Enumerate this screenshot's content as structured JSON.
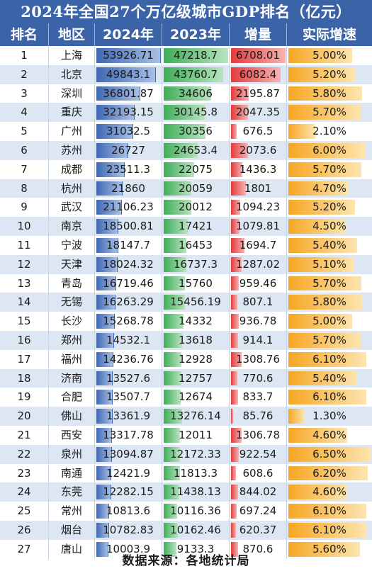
{
  "title": "2024年全国27个万亿级城市GDP排名（亿元）",
  "footer": "数据来源：各地统计局",
  "headers": {
    "rank": "排名",
    "region": "地区",
    "gdp2024": "2024年",
    "gdp2023": "2023年",
    "increase": "增量",
    "growth": "实际增速"
  },
  "colors": {
    "header_bg": "#3b63a8",
    "bar_2024": "#3f68b4",
    "bar_2023": "#3fae58",
    "bar_increase": "#e23c3c",
    "bar_growth": "#f6a623",
    "row_alt": "#dde6f3"
  },
  "chart_data": {
    "type": "table",
    "columns": [
      "排名",
      "地区",
      "2024年",
      "2023年",
      "增量",
      "实际增速"
    ],
    "rows": [
      {
        "rank": "1",
        "city": "上海",
        "gdp2024": "53926.71",
        "gdp2023": "47218.7",
        "increase": "6708.01",
        "growth": "5.00%"
      },
      {
        "rank": "2",
        "city": "北京",
        "gdp2024": "49843.1",
        "gdp2023": "43760.7",
        "increase": "6082.4",
        "growth": "5.20%"
      },
      {
        "rank": "3",
        "city": "深圳",
        "gdp2024": "36801.87",
        "gdp2023": "34606",
        "increase": "2195.87",
        "growth": "5.80%"
      },
      {
        "rank": "4",
        "city": "重庆",
        "gdp2024": "32193.15",
        "gdp2023": "30145.8",
        "increase": "2047.35",
        "growth": "5.70%"
      },
      {
        "rank": "5",
        "city": "广州",
        "gdp2024": "31032.5",
        "gdp2023": "30356",
        "increase": "676.5",
        "growth": "2.10%"
      },
      {
        "rank": "6",
        "city": "苏州",
        "gdp2024": "26727",
        "gdp2023": "24653.4",
        "increase": "2073.6",
        "growth": "6.00%"
      },
      {
        "rank": "7",
        "city": "成都",
        "gdp2024": "23511.3",
        "gdp2023": "22075",
        "increase": "1436.3",
        "growth": "5.70%"
      },
      {
        "rank": "8",
        "city": "杭州",
        "gdp2024": "21860",
        "gdp2023": "20059",
        "increase": "1801",
        "growth": "4.70%"
      },
      {
        "rank": "9",
        "city": "武汉",
        "gdp2024": "21106.23",
        "gdp2023": "20012",
        "increase": "1094.23",
        "growth": "5.20%"
      },
      {
        "rank": "10",
        "city": "南京",
        "gdp2024": "18500.81",
        "gdp2023": "17421",
        "increase": "1079.81",
        "growth": "4.50%"
      },
      {
        "rank": "11",
        "city": "宁波",
        "gdp2024": "18147.7",
        "gdp2023": "16453",
        "increase": "1694.7",
        "growth": "5.40%"
      },
      {
        "rank": "12",
        "city": "天津",
        "gdp2024": "18024.32",
        "gdp2023": "16737.3",
        "increase": "1287.02",
        "growth": "5.10%"
      },
      {
        "rank": "13",
        "city": "青岛",
        "gdp2024": "16719.46",
        "gdp2023": "15760",
        "increase": "959.46",
        "growth": "5.70%"
      },
      {
        "rank": "14",
        "city": "无锡",
        "gdp2024": "16263.29",
        "gdp2023": "15456.19",
        "increase": "807.1",
        "growth": "5.80%"
      },
      {
        "rank": "15",
        "city": "长沙",
        "gdp2024": "15268.78",
        "gdp2023": "14332",
        "increase": "936.78",
        "growth": "5.00%"
      },
      {
        "rank": "16",
        "city": "郑州",
        "gdp2024": "14532.1",
        "gdp2023": "13618",
        "increase": "914.1",
        "growth": "5.70%"
      },
      {
        "rank": "17",
        "city": "福州",
        "gdp2024": "14236.76",
        "gdp2023": "12928",
        "increase": "1308.76",
        "growth": "6.10%"
      },
      {
        "rank": "18",
        "city": "济南",
        "gdp2024": "13527.6",
        "gdp2023": "12757",
        "increase": "770.6",
        "growth": "5.40%"
      },
      {
        "rank": "19",
        "city": "合肥",
        "gdp2024": "13507.7",
        "gdp2023": "12674",
        "increase": "833.7",
        "growth": "6.10%"
      },
      {
        "rank": "20",
        "city": "佛山",
        "gdp2024": "13361.9",
        "gdp2023": "13276.14",
        "increase": "85.76",
        "growth": "1.30%"
      },
      {
        "rank": "21",
        "city": "西安",
        "gdp2024": "13317.78",
        "gdp2023": "12011",
        "increase": "1306.78",
        "growth": "4.60%"
      },
      {
        "rank": "22",
        "city": "泉州",
        "gdp2024": "13094.87",
        "gdp2023": "12172.33",
        "increase": "922.54",
        "growth": "6.50%"
      },
      {
        "rank": "23",
        "city": "南通",
        "gdp2024": "12421.9",
        "gdp2023": "11813.3",
        "increase": "608.6",
        "growth": "6.20%"
      },
      {
        "rank": "24",
        "city": "东莞",
        "gdp2024": "12282.15",
        "gdp2023": "11438.13",
        "increase": "844.02",
        "growth": "4.60%"
      },
      {
        "rank": "25",
        "city": "常州",
        "gdp2024": "10813.6",
        "gdp2023": "10116.36",
        "increase": "697.24",
        "growth": "6.10%"
      },
      {
        "rank": "26",
        "city": "烟台",
        "gdp2024": "10782.83",
        "gdp2023": "10162.46",
        "increase": "620.37",
        "growth": "6.10%"
      },
      {
        "rank": "27",
        "city": "唐山",
        "gdp2024": "10003.9",
        "gdp2023": "9133.3",
        "increase": "870.6",
        "growth": "5.60%"
      }
    ]
  }
}
